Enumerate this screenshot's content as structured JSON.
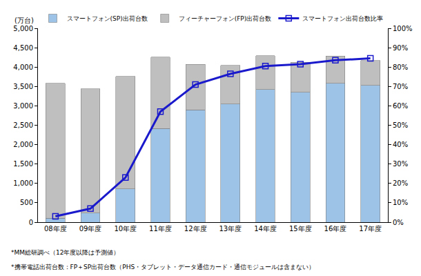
{
  "chart_data": {
    "type": "bar",
    "stacked": true,
    "grid": false,
    "legend": "top",
    "y_label": "(万台)",
    "categories": [
      "08年度",
      "09年度",
      "10年度",
      "11年度",
      "12年度",
      "13年度",
      "14年度",
      "15年度",
      "16年度",
      "17年度"
    ],
    "series": [
      {
        "name": "スマートフォン(SP)出荷台数",
        "type": "bar",
        "color": "#9dc3e6",
        "values": [
          105,
          240,
          860,
          2420,
          2900,
          3050,
          3420,
          3350,
          3580,
          3530
        ]
      },
      {
        "name": "フィーチャーフォン(FP)出荷台数",
        "type": "bar",
        "color": "#bfbfbf",
        "values": [
          3475,
          3200,
          2900,
          1840,
          1170,
          990,
          870,
          770,
          700,
          640
        ]
      },
      {
        "name": "スマートフォン出荷台数比率",
        "type": "line",
        "axis": "y2",
        "color": "#1a1acc",
        "marker": "square-open",
        "values": [
          3,
          7,
          23,
          57,
          71,
          76.5,
          80.5,
          81.5,
          83.5,
          84.5
        ]
      }
    ],
    "ylim": [
      0,
      5000
    ],
    "yticks": [
      0,
      500,
      {
        "value": 1000,
        "label": "1,000"
      },
      {
        "value": 1500,
        "label": "1,500"
      },
      {
        "value": 2000,
        "label": "2,000"
      },
      {
        "value": 2500,
        "label": "2,500"
      },
      {
        "value": 3000,
        "label": "3,000"
      },
      {
        "value": 3500,
        "label": "3,500"
      },
      {
        "value": 4000,
        "label": "4,000"
      },
      {
        "value": 4500,
        "label": "4,500"
      },
      {
        "value": 5000,
        "label": "5,000"
      }
    ],
    "y2lim": [
      0,
      100
    ],
    "y2ticks": [
      {
        "value": 0,
        "label": "0%"
      },
      {
        "value": 10,
        "label": "10%"
      },
      {
        "value": 20,
        "label": "20%"
      },
      {
        "value": 30,
        "label": "30%"
      },
      {
        "value": 40,
        "label": "40%"
      },
      {
        "value": 50,
        "label": "50%"
      },
      {
        "value": 60,
        "label": "60%"
      },
      {
        "value": 70,
        "label": "70%"
      },
      {
        "value": 80,
        "label": "80%"
      },
      {
        "value": 90,
        "label": "90%"
      },
      {
        "value": 100,
        "label": "100%"
      }
    ],
    "annotations": [
      "*MM総研調べ（12年度以降は予測値）",
      "*携帯電話出荷台数：FP＋SP出荷台数（PHS・タブレット・データ通信カード・通信モジュールは含まない）"
    ]
  }
}
